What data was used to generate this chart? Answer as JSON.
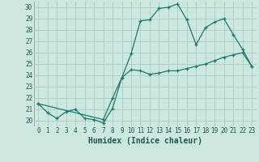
{
  "xlabel": "Humidex (Indice chaleur)",
  "ylabel": "",
  "xlim": [
    -0.5,
    23.5
  ],
  "ylim": [
    19.5,
    30.5
  ],
  "xticks": [
    0,
    1,
    2,
    3,
    4,
    5,
    6,
    7,
    8,
    9,
    10,
    11,
    12,
    13,
    14,
    15,
    16,
    17,
    18,
    19,
    20,
    21,
    22,
    23
  ],
  "yticks": [
    20,
    21,
    22,
    23,
    24,
    25,
    26,
    27,
    28,
    29,
    30
  ],
  "background_color": "#cce8e0",
  "line_color": "#1a7a6e",
  "grid_color": "#aaccC4",
  "line1_x": [
    0,
    1,
    2,
    3,
    4,
    5,
    6,
    7,
    8,
    9,
    10,
    11,
    12,
    13,
    14,
    15,
    16,
    17,
    18,
    19,
    20,
    21,
    22,
    23
  ],
  "line1_y": [
    21.5,
    20.7,
    20.2,
    20.8,
    21.0,
    20.2,
    20.1,
    19.8,
    21.1,
    23.8,
    25.9,
    28.8,
    28.9,
    29.9,
    30.0,
    30.3,
    28.9,
    26.7,
    28.2,
    28.7,
    29.0,
    27.6,
    26.3,
    24.8
  ],
  "line2_x": [
    0,
    7,
    8,
    9,
    10,
    11,
    12,
    13,
    14,
    15,
    16,
    17,
    18,
    19,
    20,
    21,
    22,
    23
  ],
  "line2_y": [
    21.5,
    20.1,
    22.0,
    23.8,
    24.5,
    24.4,
    24.1,
    24.2,
    24.4,
    24.4,
    24.6,
    24.8,
    25.0,
    25.3,
    25.6,
    25.8,
    26.0,
    24.8
  ],
  "tick_fontsize": 5.5,
  "xlabel_fontsize": 7
}
